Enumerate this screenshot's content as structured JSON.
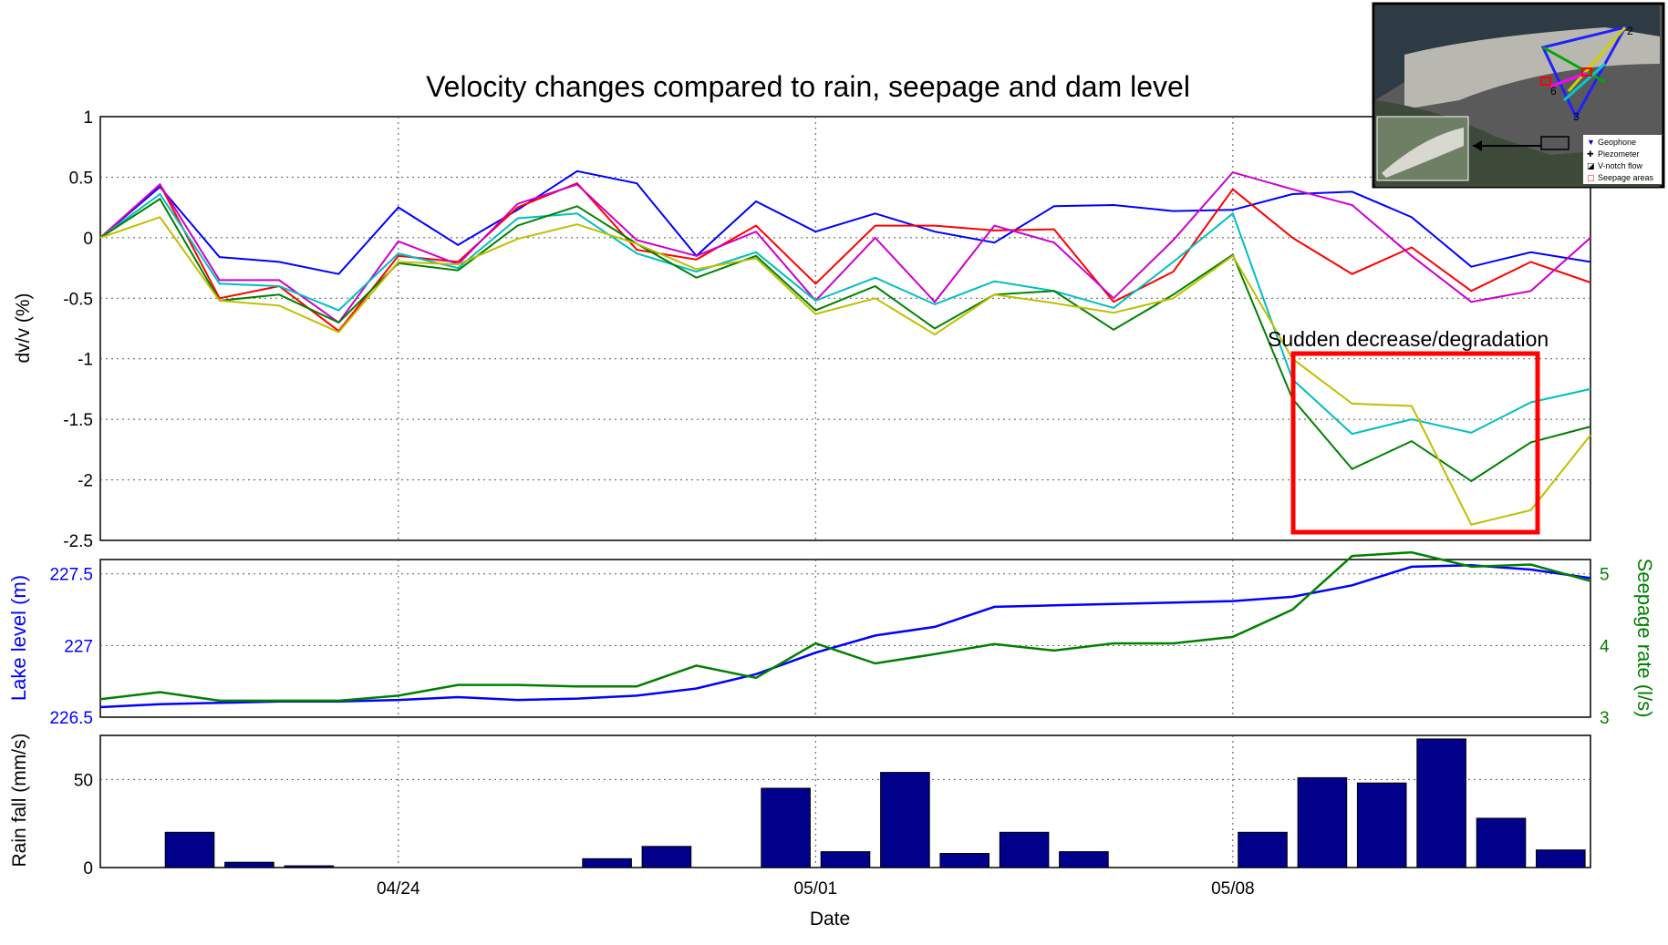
{
  "chart_data": [
    {
      "type": "line",
      "title": "Velocity changes compared to rain, seepage and dam level",
      "ylabel": "dv/v (%)",
      "ylim": [
        -2.5,
        1
      ],
      "yticks": [
        "1",
        "0.5",
        "0",
        "-0.5",
        "-1",
        "-1.5",
        "-2",
        "-2.5"
      ],
      "grid": true,
      "x_dates": [
        "04/19",
        "04/20",
        "04/21",
        "04/22",
        "04/23",
        "04/24",
        "04/25",
        "04/26",
        "04/27",
        "04/28",
        "04/29",
        "04/30",
        "05/01",
        "05/02",
        "05/03",
        "05/04",
        "05/05",
        "05/06",
        "05/07",
        "05/08",
        "05/09",
        "05/10",
        "05/11",
        "05/12",
        "05/13",
        "05/14"
      ],
      "series": [
        {
          "color": "#0000ff",
          "values": [
            0,
            0.42,
            -0.16,
            -0.2,
            -0.3,
            0.25,
            -0.06,
            0.23,
            0.55,
            0.45,
            -0.15,
            0.3,
            0.05,
            0.2,
            0.05,
            -0.04,
            0.26,
            0.27,
            0.22,
            0.23,
            0.36,
            0.38,
            0.17,
            -0.24,
            -0.12,
            -0.2
          ]
        },
        {
          "color": "#ff0000",
          "values": [
            0,
            0.44,
            -0.5,
            -0.4,
            -0.77,
            -0.15,
            -0.2,
            0.25,
            0.45,
            -0.1,
            -0.18,
            0.1,
            -0.38,
            0.1,
            0.1,
            0.06,
            0.07,
            -0.53,
            -0.28,
            0.4,
            0,
            -0.3,
            -0.08,
            -0.44,
            -0.2,
            -0.37
          ]
        },
        {
          "color": "#cc00cc",
          "values": [
            0,
            0.44,
            -0.35,
            -0.35,
            -0.7,
            -0.03,
            -0.22,
            0.28,
            0.44,
            -0.02,
            -0.15,
            0.05,
            -0.52,
            0,
            -0.53,
            0.1,
            -0.04,
            -0.5,
            -0.02,
            0.54,
            0.4,
            0.27,
            -0.15,
            -0.53,
            -0.44,
            0
          ]
        },
        {
          "color": "#00bfbf",
          "values": [
            0,
            0.36,
            -0.38,
            -0.4,
            -0.6,
            -0.13,
            -0.25,
            0.16,
            0.2,
            -0.13,
            -0.28,
            -0.12,
            -0.52,
            -0.33,
            -0.55,
            -0.36,
            -0.44,
            -0.58,
            -0.2,
            0.2,
            -1.17,
            -1.62,
            -1.5,
            -1.61,
            -1.36,
            -1.25
          ]
        },
        {
          "color": "#008000",
          "values": [
            0,
            0.32,
            -0.52,
            -0.47,
            -0.7,
            -0.21,
            -0.27,
            0.1,
            0.26,
            -0.05,
            -0.33,
            -0.15,
            -0.6,
            -0.4,
            -0.75,
            -0.47,
            -0.44,
            -0.76,
            -0.47,
            -0.14,
            -1.33,
            -1.91,
            -1.68,
            -2.01,
            -1.69,
            -1.56
          ]
        },
        {
          "color": "#bfbf00",
          "values": [
            0,
            0.17,
            -0.52,
            -0.56,
            -0.78,
            -0.2,
            -0.22,
            -0.01,
            0.11,
            -0.05,
            -0.26,
            -0.17,
            -0.63,
            -0.5,
            -0.8,
            -0.47,
            -0.54,
            -0.62,
            -0.5,
            -0.15,
            -1.0,
            -1.37,
            -1.39,
            -2.37,
            -2.25,
            -1.63
          ]
        }
      ],
      "annotation": {
        "text": "Sudden decrease/degradation",
        "box_color": "#ff0000"
      }
    },
    {
      "type": "line",
      "ylabel_left": "Lake level (m)",
      "ylabel_right": "Seepage rate (l/s)",
      "ylim_left": [
        226.5,
        227.6
      ],
      "ylim_right": [
        3,
        5.2
      ],
      "yticks_left": [
        "227.5",
        "227",
        "226.5"
      ],
      "yticks_right": [
        "5",
        "4",
        "3"
      ],
      "left_color": "#0000ff",
      "right_color": "#008000",
      "series": [
        {
          "name": "",
          "axis": "left",
          "color": "#0000ff",
          "values": [
            226.57,
            226.59,
            226.6,
            226.61,
            226.61,
            226.62,
            226.64,
            226.62,
            226.63,
            226.65,
            226.7,
            226.8,
            226.95,
            227.07,
            227.13,
            227.27,
            227.28,
            227.29,
            227.3,
            227.31,
            227.34,
            227.42,
            227.55,
            227.56,
            227.53,
            227.47
          ]
        },
        {
          "name": "",
          "axis": "right",
          "color": "#008000",
          "values": [
            3.25,
            3.35,
            3.23,
            3.23,
            3.23,
            3.3,
            3.45,
            3.45,
            3.43,
            3.43,
            3.72,
            3.55,
            4.03,
            3.75,
            3.88,
            4.02,
            3.93,
            4.03,
            4.03,
            4.12,
            4.5,
            5.25,
            5.3,
            5.1,
            5.13,
            4.9
          ]
        }
      ]
    },
    {
      "type": "bar",
      "ylabel": "Rain fall (mm/s)",
      "ylim": [
        0,
        75
      ],
      "yticks": [
        "50",
        "0"
      ],
      "bar_color": "#00008b",
      "values": [
        0,
        20,
        3,
        1,
        0,
        0,
        0,
        0,
        5,
        12,
        0,
        45,
        9,
        54,
        8,
        20,
        9,
        0,
        0,
        20,
        51,
        48,
        73,
        28,
        10
      ],
      "xticks": [
        "04/24",
        "05/01",
        "05/08"
      ],
      "xlabel": "Date"
    }
  ],
  "inset": {
    "legend": [
      "Geophone",
      "Piezometer",
      "V-notch flow",
      "Seepage areas"
    ],
    "point_labels": [
      "2",
      "6",
      "3"
    ]
  }
}
